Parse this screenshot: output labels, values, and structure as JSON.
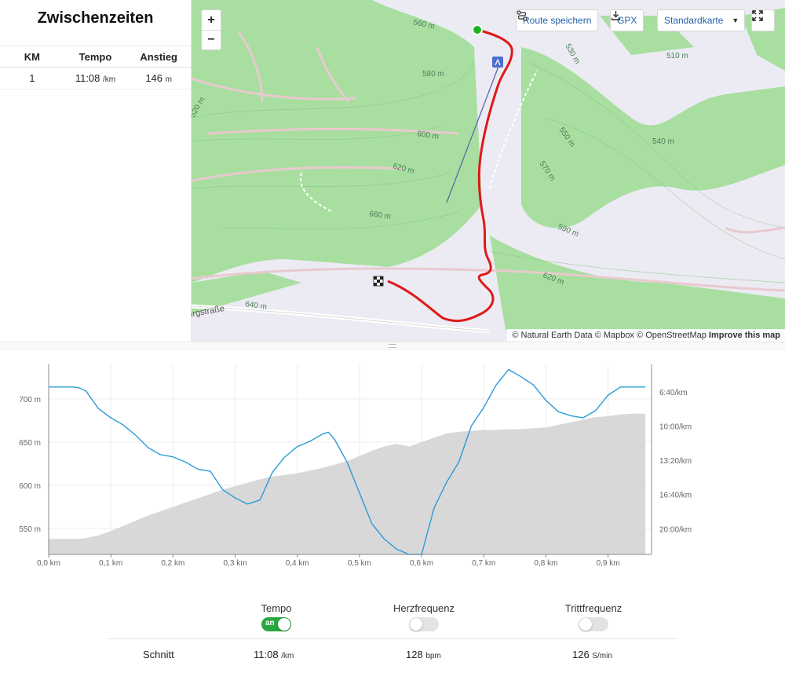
{
  "splits": {
    "title": "Zwischenzeiten",
    "headers": {
      "km": "KM",
      "tempo": "Tempo",
      "anstieg": "Anstieg"
    },
    "rows": [
      {
        "km": "1",
        "tempo": "11:08",
        "tempo_unit": "/km",
        "anstieg": "146",
        "anstieg_unit": "m"
      }
    ]
  },
  "map": {
    "zoom_in": "+",
    "zoom_out": "−",
    "save_route": "Route speichern",
    "gpx": "GPX",
    "map_style": "Standardkarte",
    "attribution_text": "© Natural Earth Data © Mapbox © OpenStreetMap",
    "attribution_link": "Improve this map",
    "contour_labels": [
      "560 m",
      "580 m",
      "600 m",
      "620 m",
      "660 m",
      "640 m",
      "590 m",
      "550 m",
      "540 m",
      "510 m",
      "530 m",
      "570 m",
      "620 m",
      "520 m"
    ],
    "street_label": "urgstraße",
    "colors": {
      "route": "#e01818",
      "start": "#1db31d",
      "forest": "#a8dfa0",
      "background": "#eeeef5"
    }
  },
  "chart_data": {
    "type": "line",
    "x": [
      0.0,
      0.02,
      0.04,
      0.05,
      0.06,
      0.08,
      0.1,
      0.12,
      0.14,
      0.16,
      0.18,
      0.2,
      0.22,
      0.24,
      0.26,
      0.28,
      0.3,
      0.32,
      0.34,
      0.36,
      0.38,
      0.4,
      0.42,
      0.44,
      0.45,
      0.46,
      0.48,
      0.5,
      0.52,
      0.54,
      0.56,
      0.58,
      0.6,
      0.62,
      0.64,
      0.66,
      0.68,
      0.7,
      0.72,
      0.74,
      0.76,
      0.78,
      0.8,
      0.82,
      0.84,
      0.86,
      0.88,
      0.9,
      0.92,
      0.94,
      0.96
    ],
    "xlabel_ticks": [
      "0,0 km",
      "0,1 km",
      "0,2 km",
      "0,3 km",
      "0,4 km",
      "0,5 km",
      "0,6 km",
      "0,7 km",
      "0,8 km",
      "0,9 km"
    ],
    "xlim": [
      0,
      0.97
    ],
    "series": [
      {
        "axis": "left",
        "values": [
          538,
          538,
          538,
          538,
          539,
          542,
          547,
          553,
          559,
          565,
          570,
          575,
          580,
          585,
          590,
          595,
          599,
          603,
          607,
          610,
          612,
          614,
          617,
          620,
          622,
          624,
          628,
          634,
          640,
          645,
          648,
          645,
          650,
          655,
          660,
          662,
          663,
          664,
          664,
          665,
          665,
          666,
          667,
          670,
          673,
          676,
          679,
          680,
          682,
          683,
          683
        ],
        "color": "#d8d8d8"
      },
      {
        "axis": "right",
        "values": [
          6.2,
          6.2,
          6.2,
          6.3,
          6.6,
          8.3,
          9.2,
          9.9,
          10.9,
          12.1,
          12.8,
          13.0,
          13.5,
          14.2,
          14.4,
          16.2,
          17.0,
          17.6,
          17.2,
          14.5,
          13.0,
          12.0,
          11.5,
          10.8,
          10.6,
          11.3,
          13.5,
          16.5,
          19.5,
          21.0,
          22.0,
          22.5,
          22.5,
          18.0,
          15.5,
          13.5,
          10.0,
          8.2,
          6.0,
          4.5,
          5.2,
          6.0,
          7.5,
          8.6,
          9.0,
          9.2,
          8.5,
          7.0,
          6.2,
          6.2,
          6.2
        ],
        "color": "#2c9bd6"
      }
    ],
    "left_axis": {
      "ticks": [
        "700 m",
        "650 m",
        "600 m",
        "550 m"
      ],
      "ylim": [
        520,
        740
      ]
    },
    "right_axis": {
      "ticks": [
        "6:40/km",
        "10:00/km",
        "13:20/km",
        "16:40/km",
        "20:00/km"
      ],
      "ylim": [
        4.0,
        22.5
      ]
    },
    "grid": true
  },
  "stats": {
    "toggles": [
      {
        "label": "Tempo",
        "state": "an",
        "on": true
      },
      {
        "label": "Herzfrequenz",
        "on": false
      },
      {
        "label": "Trittfrequenz",
        "on": false
      }
    ],
    "avg_label": "Schnitt",
    "avg_tempo": "11:08",
    "avg_tempo_unit": "/km",
    "avg_hr": "128",
    "avg_hr_unit": "bpm",
    "avg_cadence": "126",
    "avg_cadence_unit": "S/min"
  }
}
